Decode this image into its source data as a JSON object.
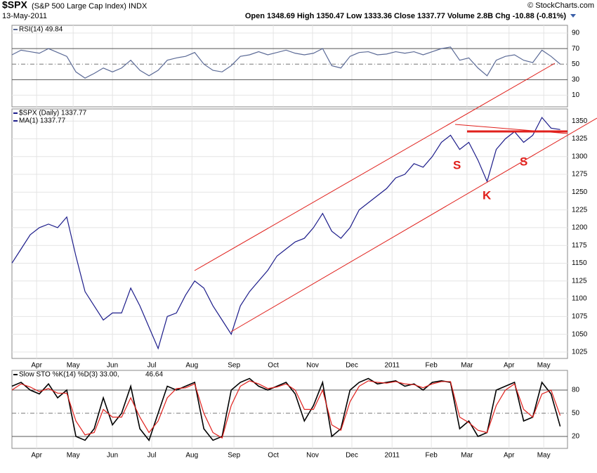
{
  "header": {
    "symbol": "$SPX",
    "name": "(S&P 500 Large Cap Index) INDX",
    "date": "13-May-2011",
    "quote": "Open 1348.69  High 1350.47  Low 1333.36  Close 1337.77  Volume 2.8B  Chg -10.88 (-0.81%)",
    "credit": "© StockCharts.com"
  },
  "annotations": [
    "S",
    "K",
    "S"
  ],
  "chart_data": [
    {
      "type": "line",
      "legend": [
        "RSI(14) 49.84"
      ],
      "xlim": [
        0,
        60.8
      ],
      "ylim": [
        -5,
        100
      ],
      "yticks": [
        10,
        30,
        50,
        70,
        90
      ],
      "series": [
        {
          "name": "RSI(14)",
          "color": "#5b6a96",
          "values": [
            62,
            68,
            66,
            64,
            70,
            65,
            60,
            40,
            32,
            38,
            45,
            40,
            45,
            55,
            42,
            35,
            42,
            55,
            58,
            60,
            65,
            50,
            42,
            40,
            48,
            60,
            62,
            66,
            62,
            65,
            68,
            64,
            62,
            64,
            70,
            48,
            45,
            60,
            65,
            66,
            62,
            63,
            66,
            64,
            66,
            62,
            66,
            70,
            72,
            55,
            58,
            45,
            35,
            55,
            60,
            62,
            55,
            52,
            68,
            60,
            50
          ]
        }
      ]
    },
    {
      "type": "line",
      "legend": [
        "$SPX (Daily) 1337.77",
        "MA(1) 1337.77"
      ],
      "xlim": [
        0,
        60.8
      ],
      "ylim": [
        1016,
        1367
      ],
      "yticks": [
        1025,
        1050,
        1075,
        1100,
        1125,
        1150,
        1175,
        1200,
        1225,
        1250,
        1275,
        1300,
        1325,
        1350
      ],
      "xticks": [
        {
          "value": 2.7,
          "label": "Apr"
        },
        {
          "value": 6.7,
          "label": "May"
        },
        {
          "value": 11.0,
          "label": "Jun"
        },
        {
          "value": 15.3,
          "label": "Jul"
        },
        {
          "value": 19.7,
          "label": "Aug"
        },
        {
          "value": 24.3,
          "label": "Sep"
        },
        {
          "value": 28.6,
          "label": "Oct"
        },
        {
          "value": 32.9,
          "label": "Nov"
        },
        {
          "value": 37.2,
          "label": "Dec"
        },
        {
          "value": 41.6,
          "label": "2011"
        },
        {
          "value": 45.9,
          "label": "Feb"
        },
        {
          "value": 49.8,
          "label": "Mar"
        },
        {
          "value": 54.4,
          "label": "Apr"
        },
        {
          "value": 58.2,
          "label": "May"
        }
      ],
      "series": [
        {
          "name": "$SPX",
          "color": "#1c1c8a",
          "values": [
            1150,
            1170,
            1190,
            1200,
            1205,
            1200,
            1215,
            1160,
            1110,
            1090,
            1070,
            1080,
            1080,
            1115,
            1090,
            1060,
            1030,
            1075,
            1080,
            1105,
            1125,
            1115,
            1090,
            1070,
            1050,
            1090,
            1110,
            1125,
            1140,
            1160,
            1170,
            1180,
            1185,
            1200,
            1220,
            1195,
            1185,
            1200,
            1225,
            1235,
            1245,
            1255,
            1270,
            1275,
            1290,
            1285,
            1300,
            1320,
            1330,
            1310,
            1320,
            1295,
            1265,
            1310,
            1325,
            1335,
            1320,
            1330,
            1355,
            1340,
            1338
          ]
        }
      ]
    },
    {
      "type": "line",
      "legend": [
        "Slow STO %K(14) %D(3) 33.00,",
        "46.64"
      ],
      "xlim": [
        0,
        60.8
      ],
      "ylim": [
        4.5,
        105.5
      ],
      "yticks": [
        20,
        50,
        80
      ],
      "xticks": [
        {
          "value": 2.7,
          "label": "Apr"
        },
        {
          "value": 6.7,
          "label": "May"
        },
        {
          "value": 11.0,
          "label": "Jun"
        },
        {
          "value": 15.3,
          "label": "Jul"
        },
        {
          "value": 19.7,
          "label": "Aug"
        },
        {
          "value": 24.3,
          "label": "Sep"
        },
        {
          "value": 28.6,
          "label": "Oct"
        },
        {
          "value": 32.9,
          "label": "Nov"
        },
        {
          "value": 37.2,
          "label": "Dec"
        },
        {
          "value": 41.6,
          "label": "2011"
        },
        {
          "value": 45.9,
          "label": "Feb"
        },
        {
          "value": 49.8,
          "label": "Mar"
        },
        {
          "value": 54.4,
          "label": "Apr"
        },
        {
          "value": 58.2,
          "label": "May"
        }
      ],
      "series": [
        {
          "name": "%K",
          "color": "#000000",
          "values": [
            85,
            90,
            80,
            75,
            88,
            70,
            80,
            20,
            15,
            30,
            70,
            35,
            50,
            85,
            30,
            15,
            50,
            85,
            80,
            85,
            90,
            30,
            15,
            20,
            80,
            90,
            95,
            85,
            80,
            85,
            90,
            75,
            40,
            60,
            90,
            20,
            30,
            80,
            90,
            95,
            88,
            90,
            92,
            85,
            88,
            80,
            90,
            92,
            90,
            30,
            40,
            20,
            25,
            80,
            85,
            90,
            40,
            45,
            90,
            75,
            33
          ]
        },
        {
          "name": "%D",
          "color": "#e0201c",
          "values": [
            80,
            88,
            84,
            78,
            82,
            76,
            76,
            40,
            22,
            25,
            55,
            45,
            45,
            70,
            45,
            25,
            40,
            70,
            82,
            83,
            88,
            50,
            25,
            18,
            60,
            85,
            92,
            88,
            82,
            84,
            88,
            80,
            55,
            55,
            80,
            35,
            28,
            65,
            85,
            92,
            90,
            89,
            91,
            88,
            87,
            83,
            88,
            91,
            91,
            45,
            38,
            28,
            25,
            60,
            80,
            88,
            55,
            45,
            75,
            80,
            47
          ]
        }
      ]
    }
  ]
}
